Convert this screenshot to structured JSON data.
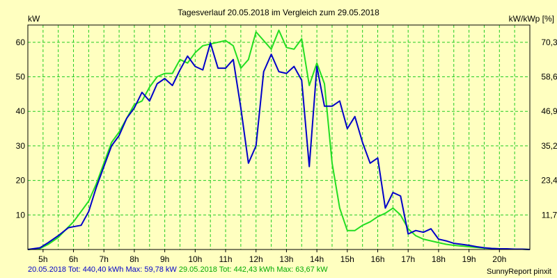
{
  "chart_data": {
    "type": "line",
    "title": "Tagesverlauf 20.05.2018 im Vergleich zum 29.05.2018",
    "ylabel": "kW",
    "ylabel_right": "kW/kWp [%]",
    "ylim": [
      0,
      65
    ],
    "y_ticks": [
      "10",
      "20",
      "30",
      "40",
      "50",
      "60"
    ],
    "y_right_ticks": [
      "11,7",
      "23,4",
      "35,2",
      "46,9",
      "58,6",
      "70,3"
    ],
    "xlim": [
      4.5,
      21.0
    ],
    "x_ticks": [
      "5h",
      "6h",
      "7h",
      "8h",
      "9h",
      "10h",
      "11h",
      "12h",
      "13h",
      "14h",
      "15h",
      "16h",
      "17h",
      "18h",
      "19h",
      "20h"
    ],
    "grid": true,
    "series": [
      {
        "name": "20.05.2018",
        "color": "#0000c8",
        "x": [
          4.5,
          4.9,
          5.17,
          5.5,
          5.83,
          6.0,
          6.25,
          6.5,
          6.75,
          7.0,
          7.25,
          7.5,
          7.75,
          8.0,
          8.25,
          8.5,
          8.75,
          9.0,
          9.25,
          9.5,
          9.75,
          10.0,
          10.25,
          10.5,
          10.75,
          11.0,
          11.25,
          11.5,
          11.75,
          12.0,
          12.25,
          12.5,
          12.75,
          13.0,
          13.25,
          13.5,
          13.75,
          14.0,
          14.25,
          14.5,
          14.75,
          15.0,
          15.25,
          15.5,
          15.75,
          16.0,
          16.25,
          16.5,
          16.75,
          17.0,
          17.25,
          17.5,
          17.75,
          18.0,
          18.25,
          18.5,
          18.75,
          19.0,
          19.25,
          19.5,
          19.75,
          20.0,
          20.25,
          20.5,
          20.75,
          21.0
        ],
        "values": [
          0,
          0.5,
          2,
          4,
          6.3,
          6.6,
          7,
          11,
          18,
          24,
          30,
          33,
          38,
          41,
          45.5,
          43,
          48,
          49.5,
          47.5,
          52,
          56,
          53,
          52,
          59.8,
          52.5,
          52.5,
          55,
          41,
          25,
          30,
          51.5,
          56.5,
          51.5,
          51,
          53,
          49,
          24,
          53,
          41.5,
          41.5,
          43,
          35,
          38.5,
          31,
          25,
          26.5,
          12,
          16.5,
          15.5,
          4.5,
          5.5,
          5,
          6,
          3,
          2.5,
          1.8,
          1.5,
          1.2,
          0.8,
          0.5,
          0.3,
          0.2,
          0.2,
          0.1,
          0.1,
          0
        ]
      },
      {
        "name": "29.05.2018",
        "color": "#22dd22",
        "x": [
          4.5,
          4.9,
          5.17,
          5.5,
          5.83,
          6.0,
          6.25,
          6.5,
          6.75,
          7.0,
          7.25,
          7.5,
          7.75,
          8.0,
          8.25,
          8.5,
          8.75,
          9.0,
          9.25,
          9.5,
          9.75,
          10.0,
          10.25,
          10.5,
          10.75,
          11.0,
          11.25,
          11.5,
          11.75,
          12.0,
          12.25,
          12.5,
          12.75,
          13.0,
          13.25,
          13.5,
          13.75,
          14.0,
          14.25,
          14.5,
          14.75,
          15.0,
          15.25,
          15.5,
          15.75,
          16.0,
          16.25,
          16.5,
          16.75,
          17.0,
          17.25,
          17.5,
          17.75,
          18.0,
          18.25,
          18.5,
          18.75,
          19.0,
          19.25,
          19.5,
          19.75,
          20.0,
          20.25,
          20.5,
          20.75,
          21.0
        ],
        "values": [
          0,
          0.3,
          1.5,
          3.5,
          6.5,
          8,
          11,
          14,
          19,
          25,
          31,
          34,
          38,
          42,
          43,
          47,
          50,
          51,
          51,
          55,
          54,
          57,
          59,
          59.5,
          60,
          60.5,
          59,
          52.5,
          55,
          63,
          60.5,
          58,
          63.5,
          58.5,
          58,
          61,
          47.5,
          54,
          48,
          25,
          12,
          5.5,
          5.5,
          7,
          8,
          9.5,
          10.5,
          12,
          10,
          6,
          4,
          3,
          2.5,
          2,
          1.5,
          1.2,
          1,
          0.8,
          0.6,
          0.4,
          0.3,
          0.2,
          0.1,
          0.1,
          0.1,
          0
        ]
      }
    ]
  },
  "footer": {
    "series1_label": "20.05.2018 Tot: 440,40 kWh Max: 59,78 kW",
    "series2_label": "29.05.2018 Tot: 442,43 kWh Max: 63,67 kW",
    "brand": "SunnyReport pinxit"
  }
}
